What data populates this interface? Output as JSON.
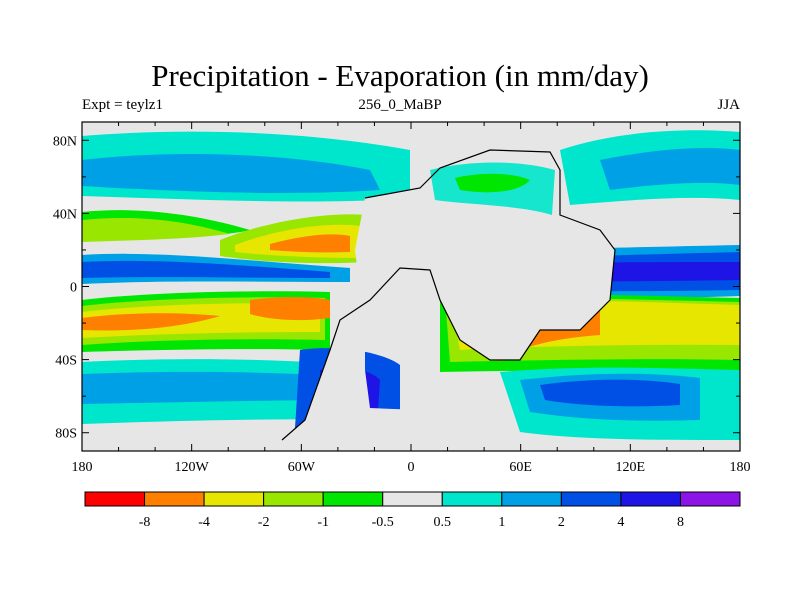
{
  "title": "Precipitation - Evaporation (in mm/day)",
  "left_label": "Expt = teylz1",
  "center_label": "256_0_MaBP",
  "right_label": "JJA",
  "map": {
    "x_ticks": [
      "180",
      "120W",
      "60W",
      "0",
      "60E",
      "120E",
      "180"
    ],
    "y_ticks": [
      "80N",
      "40N",
      "0",
      "40S",
      "80S"
    ],
    "x_tick_values": [
      -180,
      -120,
      -60,
      0,
      60,
      120,
      180
    ],
    "y_tick_values": [
      80,
      40,
      0,
      -40,
      -80
    ],
    "lon_range": [
      -180,
      180
    ],
    "lat_range": [
      -90,
      90
    ]
  },
  "colorbar": {
    "labels": [
      "-8",
      "-4",
      "-2",
      "-1",
      "-0.5",
      "0.5",
      "1",
      "2",
      "4",
      "8"
    ],
    "colors": [
      "#ff0000",
      "#ff7f00",
      "#e6e600",
      "#99e600",
      "#00e600",
      "#e6e6e6",
      "#00e6cc",
      "#00a0e6",
      "#0050e6",
      "#1e14e6",
      "#8c14e6"
    ]
  },
  "colors": {
    "land": "#e6e6e6",
    "neg_strong": "#ff7f00",
    "neg_mid": "#e6e600",
    "neg_weak": "#99e600",
    "neg_min": "#00e600",
    "pos_weak": "#00e6cc",
    "pos_mid": "#00a0e6",
    "pos_strong": "#0050e6",
    "pos_max": "#1e14e6"
  }
}
